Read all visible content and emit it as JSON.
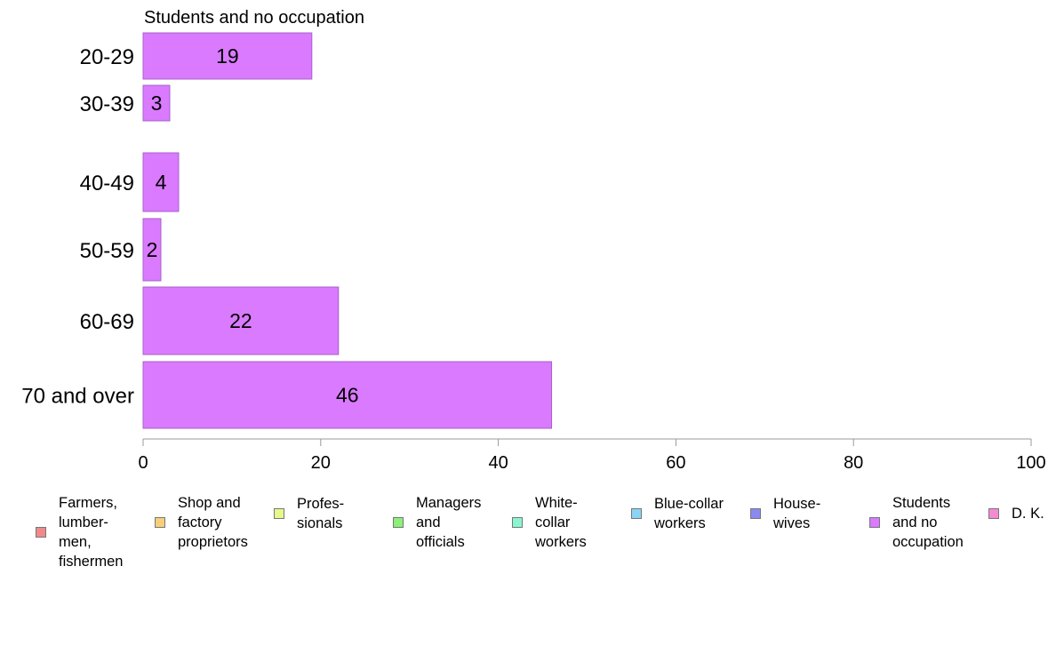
{
  "chart_data": {
    "type": "bar",
    "orientation": "horizontal",
    "title": "Students and no occupation",
    "categories": [
      "20-29",
      "30-39",
      "40-49",
      "50-59",
      "60-69",
      "70 and over"
    ],
    "values": [
      19,
      3,
      4,
      2,
      22,
      46
    ],
    "value_labels": [
      "19",
      "3",
      "4",
      "2",
      "22",
      "46"
    ],
    "bar_color": "#d97aff",
    "xlim": [
      0,
      100
    ],
    "xticks": [
      "0",
      "20",
      "40",
      "60",
      "80",
      "100"
    ],
    "grid": false,
    "legend_position": "bottom",
    "legend": [
      {
        "label": "Farmers,\nlumber-\nmen,\nfishermen",
        "color": "#f08a8a"
      },
      {
        "label": "Shop and\nfactory\nproprietors",
        "color": "#f5cf7a"
      },
      {
        "label": "Profes-\nsionals",
        "color": "#e8f78a"
      },
      {
        "label": "Managers\nand\nofficials",
        "color": "#8cf07a"
      },
      {
        "label": "White-\ncollar\nworkers",
        "color": "#8af5d2"
      },
      {
        "label": "Blue-collar\nworkers",
        "color": "#8ad4f5"
      },
      {
        "label": "House-\nwives",
        "color": "#8a8af0"
      },
      {
        "label": "Students\nand no\noccupation",
        "color": "#d97aff"
      },
      {
        "label": "D. K.",
        "color": "#f58ad2"
      }
    ]
  }
}
